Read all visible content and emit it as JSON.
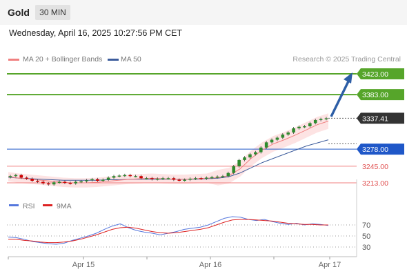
{
  "header": {
    "symbol": "Gold",
    "timeframe": "30 MIN"
  },
  "datetime": "Wednesday, April 16, 2025 10:27:56 PM CET",
  "legend": {
    "ma20": "MA 20 + Bollinger Bands",
    "ma50": "MA 50",
    "rsi": "RSI",
    "ma9": "9MA",
    "copyright": "Research © 2025 Trading Central"
  },
  "colors": {
    "bull": "#4aa02c",
    "bear": "#d00000",
    "ma20": "#f08080",
    "bollinger_fill": "#fde3e3",
    "ma50": "#3c5c9c",
    "resistance": "#56a52a",
    "pivot": "#1f57c8",
    "support": "#f08080",
    "last_price": "#333333",
    "arrow": "#2d5ea6",
    "rsi": "#5577dd",
    "rsi_ma": "#dd2222"
  },
  "chart_data": [
    {
      "type": "line",
      "title": "Gold 30 MIN",
      "x_ticks": [
        "Apr 15",
        "Apr 16",
        "Apr 17"
      ],
      "price_levels": [
        {
          "label": "3423.00",
          "value": 3423.0,
          "kind": "resistance"
        },
        {
          "label": "3383.00",
          "value": 3383.0,
          "kind": "resistance"
        },
        {
          "label": "3337.41",
          "value": 3337.41,
          "kind": "last_price"
        },
        {
          "label": "3278.00",
          "value": 3278.0,
          "kind": "pivot"
        },
        {
          "label": "3245.00",
          "value": 3245.0,
          "kind": "support"
        },
        {
          "label": "3213.00",
          "value": 3213.0,
          "kind": "support"
        }
      ],
      "series": [
        {
          "name": "MA 20 + Bollinger Bands",
          "values": [
            3225,
            3222,
            3220,
            3218,
            3216,
            3214,
            3213,
            3213,
            3214,
            3216,
            3218,
            3220,
            3221,
            3222,
            3221,
            3220,
            3220,
            3221,
            3222,
            3223,
            3227,
            3240,
            3260,
            3276,
            3288,
            3296,
            3305,
            3315,
            3325,
            3332
          ]
        },
        {
          "name": "MA 50",
          "values": [
            3224,
            3222,
            3221,
            3220,
            3219,
            3218,
            3218,
            3218,
            3218,
            3219,
            3219,
            3220,
            3220,
            3220,
            3220,
            3220,
            3220,
            3220,
            3221,
            3222,
            3225,
            3232,
            3242,
            3252,
            3260,
            3268,
            3276,
            3284,
            3290,
            3296
          ]
        }
      ],
      "candles_close": [
        3226,
        3228,
        3223,
        3221,
        3217,
        3215,
        3212,
        3210,
        3214,
        3215,
        3213,
        3212,
        3215,
        3216,
        3218,
        3220,
        3217,
        3219,
        3223,
        3226,
        3227,
        3228,
        3226,
        3226,
        3222,
        3222,
        3220,
        3221,
        3222,
        3222,
        3219,
        3218,
        3219,
        3221,
        3222,
        3221,
        3223,
        3224,
        3225,
        3226,
        3232,
        3245,
        3257,
        3262,
        3268,
        3272,
        3281,
        3291,
        3296,
        3300,
        3306,
        3310,
        3318,
        3321,
        3322,
        3328,
        3334,
        3336,
        3337.41
      ],
      "ylim": [
        3195,
        3440
      ]
    },
    {
      "type": "line",
      "title": "RSI",
      "y_ticks": [
        30,
        50,
        70
      ],
      "ylim": [
        20,
        90
      ],
      "series": [
        {
          "name": "RSI",
          "values": [
            48,
            47,
            44,
            40,
            38,
            36,
            35,
            37,
            42,
            46,
            50,
            55,
            62,
            68,
            72,
            65,
            60,
            57,
            55,
            52,
            55,
            58,
            62,
            64,
            66,
            70,
            76,
            82,
            85,
            84,
            80,
            78,
            80,
            76,
            73,
            71,
            73,
            70,
            72,
            71,
            69
          ]
        },
        {
          "name": "9MA",
          "values": [
            44,
            44,
            42,
            41,
            39,
            38,
            38,
            39,
            41,
            44,
            48,
            52,
            57,
            62,
            65,
            66,
            64,
            61,
            58,
            56,
            55,
            56,
            58,
            60,
            62,
            65,
            70,
            75,
            79,
            80,
            80,
            79,
            78,
            77,
            75,
            73,
            72,
            71,
            71,
            70,
            70
          ]
        }
      ]
    }
  ]
}
